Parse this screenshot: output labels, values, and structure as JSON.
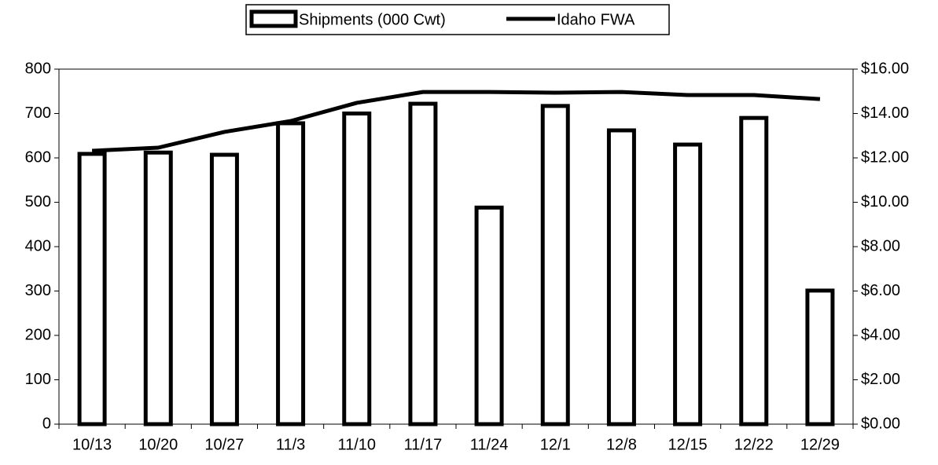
{
  "chart_data": {
    "type": "bar",
    "categories": [
      "10/13",
      "10/20",
      "10/27",
      "11/3",
      "11/10",
      "11/17",
      "11/24",
      "12/1",
      "12/8",
      "12/15",
      "12/22",
      "12/29"
    ],
    "series": [
      {
        "name": "Shipments (000 Cwt)",
        "type": "bar",
        "color": "#000000",
        "values": [
          609,
          612,
          607,
          678,
          700,
          722,
          488,
          717,
          662,
          630,
          690,
          301
        ]
      },
      {
        "name": "Idaho FWA",
        "type": "line",
        "axis": "y2",
        "color": "#000000",
        "values": [
          12.32,
          12.46,
          13.17,
          13.66,
          14.48,
          14.97,
          14.97,
          14.94,
          14.97,
          14.83,
          14.83,
          14.65
        ]
      }
    ],
    "ylim": [
      0,
      800
    ],
    "yticks": [
      0,
      100,
      200,
      300,
      400,
      500,
      600,
      700,
      800
    ],
    "y2lim": [
      0,
      16
    ],
    "y2ticks": [
      {
        "value": 0,
        "label": "$0.00"
      },
      {
        "value": 2,
        "label": "$2.00"
      },
      {
        "value": 4,
        "label": "$4.00"
      },
      {
        "value": 6,
        "label": "$6.00"
      },
      {
        "value": 8,
        "label": "$8.00"
      },
      {
        "value": 10,
        "label": "$10.00"
      },
      {
        "value": 12,
        "label": "$12.00"
      },
      {
        "value": 14,
        "label": "$14.00"
      },
      {
        "value": 16,
        "label": "$16.00"
      }
    ],
    "legend": "top"
  }
}
